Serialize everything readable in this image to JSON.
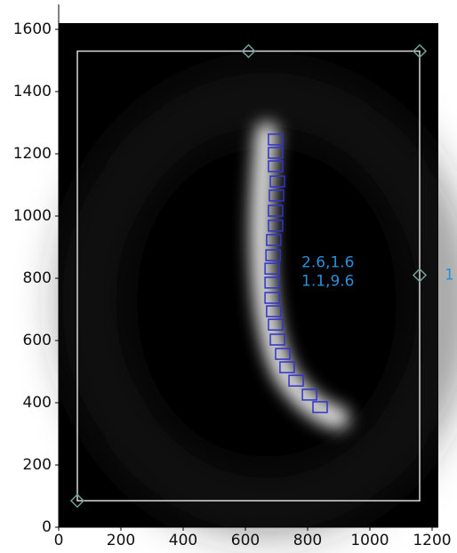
{
  "chart_data": {
    "type": "scatter",
    "xlim": [
      0,
      1220
    ],
    "ylim": [
      0,
      1620
    ],
    "xticks": [
      0,
      200,
      400,
      600,
      800,
      1000,
      1200
    ],
    "yticks": [
      0,
      200,
      400,
      600,
      800,
      1000,
      1200,
      1400,
      1600
    ],
    "box": {
      "color": "#d8d8d8",
      "x": [
        60,
        1160
      ],
      "y": [
        85,
        1530
      ]
    },
    "series": [
      {
        "color": "#3333cc",
        "marker": "square",
        "x": [
          697,
          697,
          697,
          703,
          700,
          697,
          697,
          691,
          689,
          686,
          686,
          686,
          691,
          697,
          703,
          720,
          734,
          763,
          806,
          840
        ],
        "y": [
          1246,
          1203,
          1160,
          1111,
          1066,
          1017,
          969,
          923,
          874,
          831,
          786,
          737,
          694,
          651,
          603,
          557,
          514,
          471,
          426,
          386
        ]
      },
      {
        "color": "#6fa39a",
        "marker": "diamond",
        "x": [
          610,
          1160,
          1160,
          60
        ],
        "y": [
          1530,
          1530,
          810,
          85
        ]
      }
    ],
    "annotations": [
      {
        "text": "2.6,1.6",
        "x": 780,
        "y": 850
      },
      {
        "text": "1.1,9.6",
        "x": 780,
        "y": 790
      },
      {
        "text": "1",
        "x": 1240,
        "y": 810
      }
    ],
    "annotation_color": "#2a8fd8"
  }
}
